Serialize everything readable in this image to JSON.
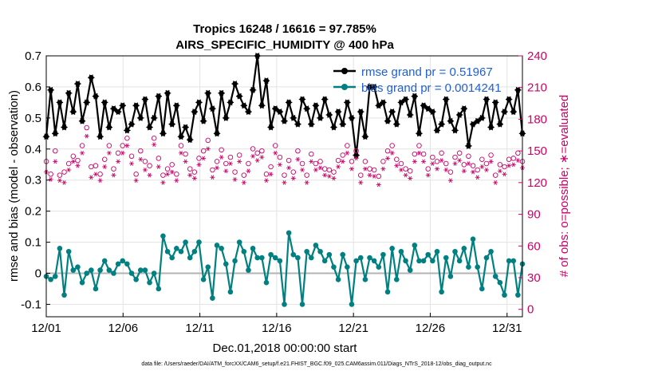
{
  "chart_data": {
    "type": "line",
    "title": "Tropics 16248 / 16616 = 97.785%",
    "subtitle": "AIRS_SPECIFIC_HUMIDITY @ 400 hPa",
    "xlabel": "Dec.01,2018 00:00:00 start",
    "ylabel_left": "rmse and bias (model - observation)",
    "ylabel_right": "# of obs: o=possible; ∗=evaluated",
    "footnote": "data file: /Users/raeder/DAI/ATM_forcXX/CAM6_setup/f.e21.FHIST_BGC.f09_025.CAM6assim.011/Diags_NTrS_2018-12/obs_diag_output.nc",
    "x_tick_labels": [
      "12/01",
      "12/06",
      "12/11",
      "12/16",
      "12/21",
      "12/26",
      "12/31"
    ],
    "x_tick_days": [
      0,
      5,
      10,
      15,
      20,
      25,
      30
    ],
    "xlim": [
      0,
      31
    ],
    "ylim_left": [
      -0.14,
      0.7
    ],
    "ylim_right": [
      -7,
      240
    ],
    "y_ticks_left": [
      "-0.1",
      "0",
      "0.1",
      "0.2",
      "0.3",
      "0.4",
      "0.5",
      "0.6",
      "0.7"
    ],
    "y_ticks_left_values": [
      -0.1,
      0,
      0.1,
      0.2,
      0.3,
      0.4,
      0.5,
      0.6,
      0.7
    ],
    "y_ticks_right": [
      "0",
      "30",
      "60",
      "90",
      "120",
      "150",
      "180",
      "210",
      "240"
    ],
    "y_ticks_right_values": [
      0,
      30,
      60,
      90,
      120,
      150,
      180,
      210,
      240
    ],
    "grid": true,
    "legend_position": "top-right",
    "series": [
      {
        "name": "rmse grand pr = 0.51967",
        "axis": "left",
        "color": "#000000",
        "marker": "asterisk",
        "values": [
          0.44,
          0.59,
          0.45,
          0.55,
          0.47,
          0.58,
          0.52,
          0.61,
          0.49,
          0.55,
          0.63,
          0.57,
          0.44,
          0.55,
          0.47,
          0.53,
          0.52,
          0.54,
          0.46,
          0.48,
          0.54,
          0.5,
          0.56,
          0.47,
          0.5,
          0.57,
          0.45,
          0.58,
          0.48,
          0.54,
          0.44,
          0.47,
          0.43,
          0.52,
          0.55,
          0.49,
          0.58,
          0.53,
          0.45,
          0.58,
          0.5,
          0.55,
          0.61,
          0.57,
          0.54,
          0.52,
          0.59,
          0.7,
          0.54,
          0.62,
          0.47,
          0.53,
          0.52,
          0.49,
          0.55,
          0.5,
          0.48,
          0.56,
          0.53,
          0.48,
          0.54,
          0.5,
          0.56,
          0.51,
          0.47,
          0.52,
          0.48,
          0.55,
          0.5,
          0.38,
          0.52,
          0.44,
          0.6,
          0.6,
          0.54,
          0.55,
          0.49,
          0.52,
          0.48,
          0.55,
          0.56,
          0.51,
          0.57,
          0.45,
          0.54,
          0.53,
          0.52,
          0.46,
          0.48,
          0.56,
          0.49,
          0.46,
          0.51,
          0.53,
          0.41,
          0.48,
          0.49,
          0.5,
          0.56,
          0.47,
          0.55,
          0.48,
          0.52,
          0.56,
          0.52,
          0.59,
          0.45
        ]
      },
      {
        "name": "bias grand pr = 0.0014241",
        "axis": "left",
        "color": "#008080",
        "marker": "circle",
        "values": [
          -0.01,
          -0.02,
          -0.01,
          0.08,
          -0.07,
          0.07,
          0.01,
          0.02,
          -0.03,
          0.0,
          0.01,
          -0.05,
          0.01,
          0.04,
          0.01,
          0.0,
          0.03,
          0.04,
          0.03,
          0.0,
          -0.02,
          0.01,
          0.01,
          -0.03,
          0.0,
          -0.05,
          0.12,
          0.07,
          0.05,
          0.08,
          0.07,
          0.1,
          0.05,
          0.07,
          0.1,
          -0.02,
          0.02,
          -0.08,
          0.09,
          0.08,
          0.03,
          -0.06,
          0.04,
          0.1,
          0.07,
          0.01,
          0.08,
          0.05,
          0.05,
          -0.03,
          0.06,
          0.05,
          0.04,
          -0.1,
          0.13,
          0.06,
          0.05,
          -0.1,
          0.07,
          0.05,
          0.09,
          0.07,
          0.04,
          0.06,
          0.02,
          -0.02,
          0.06,
          0.02,
          -0.1,
          0.04,
          0.05,
          -0.02,
          0.05,
          0.04,
          0.02,
          0.06,
          -0.06,
          0.08,
          -0.02,
          0.07,
          0.04,
          0.01,
          0.09,
          0.04,
          0.04,
          0.06,
          0.04,
          0.07,
          -0.06,
          0.05,
          -0.01,
          0.07,
          0.04,
          0.08,
          0.02,
          0.11,
          0.02,
          -0.05,
          0.05,
          0.07,
          -0.01,
          -0.03,
          -0.07,
          0.04,
          0.04,
          -0.07,
          0.03
        ]
      },
      {
        "name": "possible",
        "axis": "right",
        "color": "#cc0066",
        "marker": "open-circle",
        "values": [
          140,
          128,
          150,
          127,
          130,
          138,
          145,
          141,
          155,
          172,
          135,
          136,
          128,
          142,
          155,
          133,
          148,
          155,
          162,
          145,
          128,
          150,
          140,
          136,
          162,
          143,
          127,
          133,
          137,
          128,
          155,
          147,
          133,
          130,
          143,
          150,
          160,
          132,
          140,
          151,
          138,
          144,
          130,
          146,
          127,
          138,
          152,
          148,
          150,
          128,
          135,
          155,
          144,
          127,
          141,
          130,
          150,
          138,
          127,
          147,
          138,
          140,
          133,
          132,
          130,
          141,
          146,
          155,
          140,
          150,
          127,
          140,
          133,
          132,
          126,
          140,
          150,
          155,
          142,
          138,
          133,
          131,
          147,
          155,
          147,
          133,
          144,
          140,
          148,
          138,
          130,
          144,
          148,
          137,
          145,
          136,
          132,
          142,
          138,
          146,
          127,
          137,
          135,
          142,
          143,
          148,
          140
        ]
      },
      {
        "name": "evaluated",
        "axis": "right",
        "color": "#cc0066",
        "marker": "asterisk",
        "values": [
          130,
          123,
          140,
          122,
          120,
          132,
          140,
          136,
          148,
          164,
          125,
          128,
          122,
          135,
          148,
          127,
          140,
          148,
          155,
          138,
          122,
          142,
          132,
          127,
          156,
          135,
          120,
          128,
          130,
          122,
          148,
          140,
          127,
          124,
          137,
          143,
          152,
          125,
          134,
          144,
          131,
          138,
          123,
          140,
          120,
          131,
          145,
          141,
          144,
          122,
          128,
          148,
          137,
          120,
          134,
          124,
          142,
          132,
          120,
          140,
          132,
          134,
          127,
          126,
          124,
          135,
          140,
          148,
          133,
          143,
          120,
          133,
          127,
          126,
          118,
          133,
          143,
          148,
          136,
          132,
          127,
          124,
          140,
          148,
          140,
          127,
          138,
          133,
          141,
          132,
          122,
          138,
          141,
          131,
          138,
          130,
          125,
          135,
          132,
          140,
          120,
          131,
          128,
          136,
          137,
          141,
          134
        ]
      }
    ]
  }
}
